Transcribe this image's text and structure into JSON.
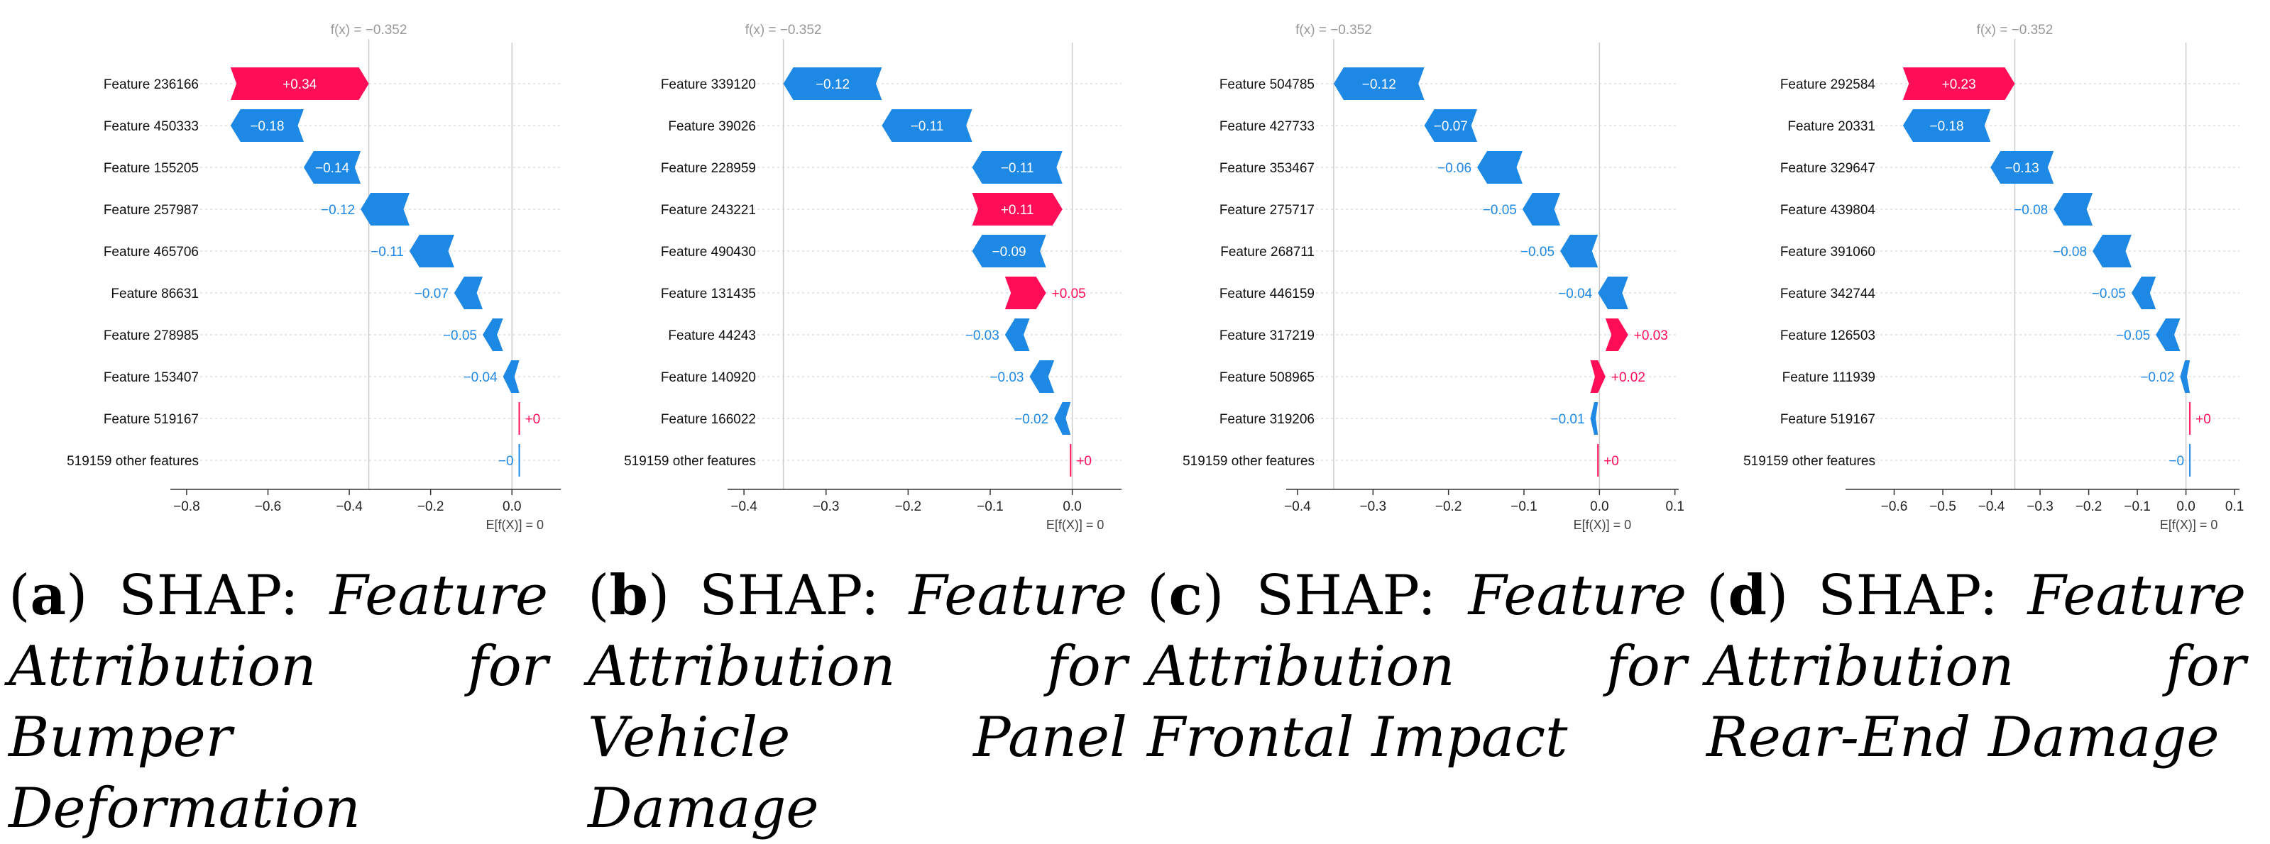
{
  "colors": {
    "positive": "#ff0d57",
    "negative": "#1e88e5",
    "axis": "#333333",
    "grid": "#cccccc",
    "fx_label": "#999999"
  },
  "chart_data": [
    {
      "type": "waterfall",
      "id": "a",
      "fx_label": "f(x) = −0.352",
      "base_label": "E[f(X)] = 0",
      "base_value": 0,
      "fx_value": -0.352,
      "xlim": [
        -0.84,
        0.12
      ],
      "ticks": [
        -0.8,
        -0.6,
        -0.4,
        -0.2,
        0.0
      ],
      "tick_labels": [
        "−0.8",
        "−0.6",
        "−0.4",
        "−0.2",
        "0.0"
      ],
      "features": [
        {
          "name": "Feature 236166",
          "value": 0.34,
          "label": "+0.34"
        },
        {
          "name": "Feature 450333",
          "value": -0.18,
          "label": "−0.18"
        },
        {
          "name": "Feature 155205",
          "value": -0.14,
          "label": "−0.14"
        },
        {
          "name": "Feature 257987",
          "value": -0.12,
          "label": "−0.12"
        },
        {
          "name": "Feature 465706",
          "value": -0.11,
          "label": "−0.11"
        },
        {
          "name": "Feature 86631",
          "value": -0.07,
          "label": "−0.07"
        },
        {
          "name": "Feature 278985",
          "value": -0.05,
          "label": "−0.05"
        },
        {
          "name": "Feature 153407",
          "value": -0.04,
          "label": "−0.04"
        },
        {
          "name": "Feature 519167",
          "value": 0.0,
          "label": "+0"
        },
        {
          "name": "519159 other features",
          "value": -0.0,
          "label": "−0"
        }
      ]
    },
    {
      "type": "waterfall",
      "id": "b",
      "fx_label": "f(x) = −0.352",
      "base_label": "E[f(X)] = 0",
      "base_value": 0,
      "fx_value": -0.352,
      "xlim": [
        -0.42,
        0.06
      ],
      "ticks": [
        -0.4,
        -0.3,
        -0.2,
        -0.1,
        0.0
      ],
      "tick_labels": [
        "−0.4",
        "−0.3",
        "−0.2",
        "−0.1",
        "0.0"
      ],
      "features": [
        {
          "name": "Feature 339120",
          "value": -0.12,
          "label": "−0.12"
        },
        {
          "name": "Feature 39026",
          "value": -0.11,
          "label": "−0.11"
        },
        {
          "name": "Feature 228959",
          "value": -0.11,
          "label": "−0.11"
        },
        {
          "name": "Feature 243221",
          "value": 0.11,
          "label": "+0.11"
        },
        {
          "name": "Feature 490430",
          "value": -0.09,
          "label": "−0.09"
        },
        {
          "name": "Feature 131435",
          "value": 0.05,
          "label": "+0.05"
        },
        {
          "name": "Feature 44243",
          "value": -0.03,
          "label": "−0.03"
        },
        {
          "name": "Feature 140920",
          "value": -0.03,
          "label": "−0.03"
        },
        {
          "name": "Feature 166022",
          "value": -0.02,
          "label": "−0.02"
        },
        {
          "name": "519159 other features",
          "value": 0.0,
          "label": "+0"
        }
      ]
    },
    {
      "type": "waterfall",
      "id": "c",
      "fx_label": "f(x) = −0.352",
      "base_label": "E[f(X)] = 0",
      "base_value": 0,
      "fx_value": -0.352,
      "xlim": [
        -0.415,
        0.105
      ],
      "ticks": [
        -0.4,
        -0.3,
        -0.2,
        -0.1,
        0.0,
        0.1
      ],
      "tick_labels": [
        "−0.4",
        "−0.3",
        "−0.2",
        "−0.1",
        "0.0",
        "0.1"
      ],
      "features": [
        {
          "name": "Feature 504785",
          "value": -0.12,
          "label": "−0.12"
        },
        {
          "name": "Feature 427733",
          "value": -0.07,
          "label": "−0.07"
        },
        {
          "name": "Feature 353467",
          "value": -0.06,
          "label": "−0.06"
        },
        {
          "name": "Feature 275717",
          "value": -0.05,
          "label": "−0.05"
        },
        {
          "name": "Feature 268711",
          "value": -0.05,
          "label": "−0.05"
        },
        {
          "name": "Feature 446159",
          "value": -0.04,
          "label": "−0.04"
        },
        {
          "name": "Feature 317219",
          "value": 0.03,
          "label": "+0.03"
        },
        {
          "name": "Feature 508965",
          "value": 0.02,
          "label": "+0.02"
        },
        {
          "name": "Feature 319206",
          "value": -0.01,
          "label": "−0.01"
        },
        {
          "name": "519159 other features",
          "value": 0.0,
          "label": "+0"
        }
      ]
    },
    {
      "type": "waterfall",
      "id": "d",
      "fx_label": "f(x) = −0.352",
      "base_label": "E[f(X)] = 0",
      "base_value": 0,
      "fx_value": -0.352,
      "xlim": [
        -0.7,
        0.11
      ],
      "ticks": [
        -0.6,
        -0.5,
        -0.4,
        -0.3,
        -0.2,
        -0.1,
        0.0,
        0.1
      ],
      "tick_labels": [
        "−0.6",
        "−0.5",
        "−0.4",
        "−0.3",
        "−0.2",
        "−0.1",
        "0.0",
        "0.1"
      ],
      "features": [
        {
          "name": "Feature 292584",
          "value": 0.23,
          "label": "+0.23"
        },
        {
          "name": "Feature 20331",
          "value": -0.18,
          "label": "−0.18"
        },
        {
          "name": "Feature 329647",
          "value": -0.13,
          "label": "−0.13"
        },
        {
          "name": "Feature 439804",
          "value": -0.08,
          "label": "−0.08"
        },
        {
          "name": "Feature 391060",
          "value": -0.08,
          "label": "−0.08"
        },
        {
          "name": "Feature 342744",
          "value": -0.05,
          "label": "−0.05"
        },
        {
          "name": "Feature 126503",
          "value": -0.05,
          "label": "−0.05"
        },
        {
          "name": "Feature 111939",
          "value": -0.02,
          "label": "−0.02"
        },
        {
          "name": "Feature 519167",
          "value": 0.0,
          "label": "+0"
        },
        {
          "name": "519159 other features",
          "value": -0.0,
          "label": "−0"
        }
      ]
    }
  ],
  "captions": [
    {
      "letter": "a",
      "prefix": "SHAP: ",
      "text": "Feature Attribution for Bumper Deformation"
    },
    {
      "letter": "b",
      "prefix": "SHAP: ",
      "text": "Feature Attribution for Vehicle Panel Damage"
    },
    {
      "letter": "c",
      "prefix": "SHAP: ",
      "text": "Feature Attribution for Frontal Impact"
    },
    {
      "letter": "d",
      "prefix": "SHAP: ",
      "text": "Feature Attribution for Rear-End Damage"
    }
  ]
}
